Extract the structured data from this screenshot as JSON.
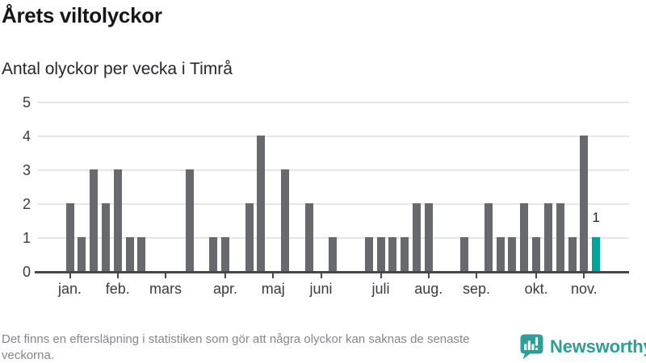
{
  "header": {
    "title": "Årets viltolyckor",
    "subtitle": "Antal olyckor per vecka i Timrå"
  },
  "chart_data": {
    "type": "bar",
    "title": "Årets viltolyckor",
    "subtitle": "Antal olyckor per vecka i Timrå",
    "xlabel": "",
    "ylabel": "",
    "x_unit": "vecka",
    "ylim": [
      0,
      5
    ],
    "y_ticks": [
      0,
      1,
      2,
      3,
      4,
      5
    ],
    "grid": "horizontal",
    "values": [
      2,
      1,
      3,
      2,
      3,
      1,
      1,
      0,
      0,
      0,
      3,
      0,
      1,
      1,
      0,
      2,
      4,
      0,
      3,
      0,
      2,
      0,
      1,
      0,
      0,
      1,
      1,
      1,
      1,
      2,
      2,
      0,
      0,
      1,
      0,
      2,
      1,
      1,
      2,
      1,
      2,
      2,
      1,
      4,
      1
    ],
    "months": [
      {
        "label": "jan.",
        "week": 0
      },
      {
        "label": "feb.",
        "week": 4
      },
      {
        "label": "mars",
        "week": 8
      },
      {
        "label": "apr.",
        "week": 13
      },
      {
        "label": "maj",
        "week": 17
      },
      {
        "label": "juni",
        "week": 21
      },
      {
        "label": "juli",
        "week": 26
      },
      {
        "label": "aug.",
        "week": 30
      },
      {
        "label": "sep.",
        "week": 34
      },
      {
        "label": "okt.",
        "week": 39
      },
      {
        "label": "nov.",
        "week": 43
      }
    ],
    "highlight_last": true,
    "highlight_label": "1",
    "colors": {
      "bar": "#68686f",
      "highlight": "#00a49b",
      "gridline": "#e5e5e7",
      "axis": "#46474c"
    }
  },
  "footer": {
    "note": "Det finns en eftersläpning i statistiken som gör att några olyckor kan saknas de senaste veckorna.",
    "logo_text": "Newsworthy",
    "logo_color": "#2f9e96"
  }
}
